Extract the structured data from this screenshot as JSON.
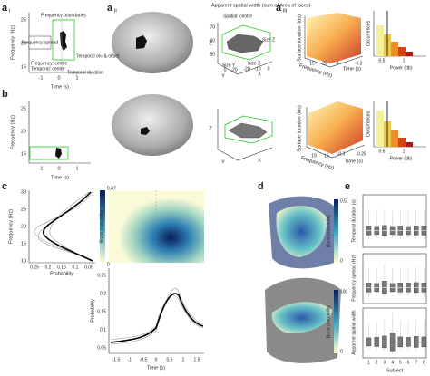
{
  "panels": {
    "ai": {
      "label": "a",
      "sub": "i",
      "ylabel": "Frequency (Hz)",
      "xlabel": "Time (s)",
      "yticks": [
        "25",
        "20",
        "15"
      ],
      "xticks": [
        "-1",
        "0",
        "1"
      ],
      "annotations": [
        "Frequency boundaries",
        "Frequency spread",
        "Temporal on- & offset",
        "Frequency: centre",
        "Temporal: centre",
        "Temporal duration"
      ]
    },
    "b": {
      "label": "b",
      "ylabel": "Frequency (Hz)",
      "xlabel": "Time (s)",
      "yticks": [
        "25",
        "20",
        "15"
      ],
      "xticks": [
        "-1",
        "0",
        "1"
      ]
    },
    "aii": {
      "label": "a",
      "sub": "ii",
      "title": "Apparent spatial width (sum of Area of faces)",
      "annotations": [
        "Spatial: centre",
        "Size Z",
        "Size Y",
        "Size X"
      ],
      "axes": [
        "Z",
        "Y",
        "X",
        "Z",
        "Y",
        "X"
      ],
      "zticks": [
        "70",
        "60",
        "50"
      ],
      "yticks": [
        "0",
        "-20"
      ],
      "xticks": [
        "-20",
        "-10",
        "0"
      ]
    },
    "aiii": {
      "label": "a",
      "sub": "iii",
      "ylabel": "Surface location (ids)",
      "xlabel": "Frequency (Hz)",
      "tlabel": "Time (s)",
      "hist_ylabel": "Occurrences",
      "hist_xlabel": "Power (db)",
      "freq_ticks": [
        "15",
        "20"
      ],
      "time_ticks": [
        "0",
        "0.3"
      ],
      "time_ticks_b": [
        "-0.3",
        "-0.25"
      ],
      "freq_ticks_b": [
        "19",
        "15"
      ],
      "hist_xticks": [
        "0.5",
        "1"
      ]
    },
    "c": {
      "label": "c",
      "left_ylabel": "Frequency (Hz)",
      "left_xlabel": "Probability",
      "left_yticks": [
        "30",
        "25",
        "20",
        "15",
        "10"
      ],
      "left_xticks": [
        "0.25",
        "0.2",
        "0.15",
        "0.1",
        "0.05"
      ],
      "colorbar_label": "Burst probability",
      "colorbar_ticks": [
        "0.37",
        "0"
      ],
      "bottom_ylabel": "Probability",
      "bottom_xlabel": "Time (s)",
      "bottom_yticks": [
        "0.25",
        "0.2",
        "0.15",
        "0.1",
        "0.05"
      ],
      "bottom_xticks": [
        "-1.5",
        "-1",
        "-0.5",
        "0",
        "0.5",
        "1",
        "1.5"
      ]
    },
    "d": {
      "label": "d",
      "colorbar_label_top": "Burst probability",
      "colorbar_label_bottom": "Burst probability",
      "top_ticks": [
        "0.5",
        "0"
      ],
      "bottom_ticks": [
        "100",
        "0"
      ]
    },
    "e": {
      "label": "e",
      "ylabels": [
        "Temporal duration (s)",
        "Frequency spread (Hz)",
        "Apparent spatial width"
      ],
      "xlabel": "Subject",
      "xticks": [
        "1",
        "2",
        "3",
        "4",
        "5",
        "6",
        "7",
        "8"
      ]
    }
  }
}
